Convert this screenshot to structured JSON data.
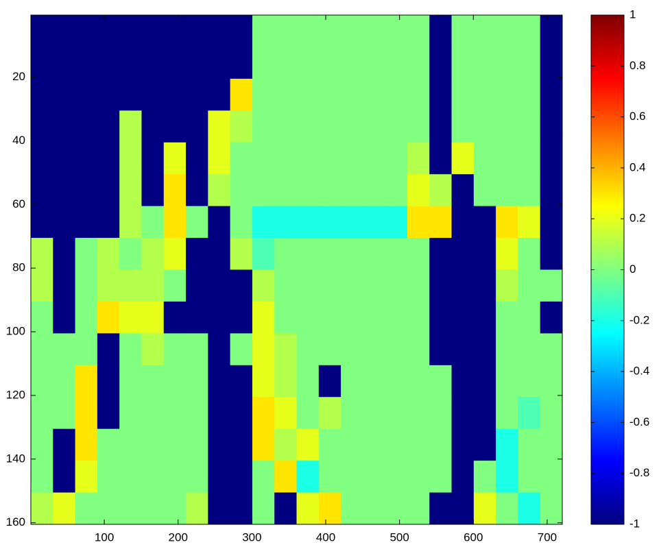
{
  "chart_data": {
    "type": "heatmap",
    "x": [
      15.5,
      45.5,
      75.5,
      105.5,
      135.5,
      165.5,
      195.5,
      225.5,
      255.5,
      285.5,
      315.5,
      345.5,
      375.5,
      405.5,
      435.5,
      465.5,
      495.5,
      525.5,
      555.5,
      585.5,
      615.5,
      645.5,
      675.5,
      705.5
    ],
    "y": [
      5.5,
      15.5,
      25.5,
      35.5,
      45.5,
      55.5,
      65.5,
      75.5,
      85.5,
      95.5,
      105.5,
      115.5,
      125.5,
      135.5,
      145.5,
      155.5
    ],
    "z": [
      [
        -1,
        -1,
        -1,
        -1,
        -1,
        -1,
        -1,
        -1,
        -1,
        -1,
        0,
        0,
        0,
        0,
        0,
        0,
        0,
        0,
        -1,
        0,
        0,
        0,
        0,
        -1
      ],
      [
        -1,
        -1,
        -1,
        -1,
        -1,
        -1,
        -1,
        -1,
        -1,
        -1,
        0,
        0,
        0,
        0,
        0,
        0,
        0,
        0,
        -1,
        0,
        0,
        0,
        0,
        -1
      ],
      [
        -1,
        -1,
        -1,
        -1,
        -1,
        -1,
        -1,
        -1,
        -1,
        0.3,
        0,
        0,
        0,
        0,
        0,
        0,
        0,
        0,
        -1,
        0,
        0,
        0,
        0,
        -1
      ],
      [
        -1,
        -1,
        -1,
        -1,
        0.1,
        -1,
        -1,
        -1,
        0.2,
        0.1,
        0,
        0,
        0,
        0,
        0,
        0,
        0,
        0,
        -1,
        0,
        0,
        0,
        0,
        -1
      ],
      [
        -1,
        -1,
        -1,
        -1,
        0.1,
        -1,
        0.2,
        -1,
        0.2,
        0,
        0,
        0,
        0,
        0,
        0,
        0,
        0,
        0.1,
        -1,
        0.2,
        0,
        0,
        0,
        -1
      ],
      [
        -1,
        -1,
        -1,
        -1,
        0.1,
        -1,
        0.3,
        -1,
        0.1,
        0,
        0,
        0,
        0,
        0,
        0,
        0,
        0,
        0.2,
        0.1,
        -1,
        0,
        0,
        0,
        -1
      ],
      [
        -1,
        -1,
        -1,
        -1,
        0.1,
        0,
        0.3,
        0,
        -1,
        0,
        -0.2,
        -0.2,
        -0.2,
        -0.2,
        -0.2,
        -0.2,
        -0.2,
        0.3,
        0.3,
        -1,
        -1,
        0.3,
        0.2,
        -1
      ],
      [
        0.1,
        -1,
        0,
        0.1,
        0,
        0.1,
        0.2,
        -1,
        -1,
        0.1,
        -0.1,
        0,
        0,
        0,
        0,
        0,
        0,
        0,
        -1,
        -1,
        -1,
        0.2,
        0,
        -1
      ],
      [
        0.1,
        -1,
        0,
        0.1,
        0.1,
        0.1,
        0,
        -1,
        -1,
        -1,
        0.1,
        0,
        0,
        0,
        0,
        0,
        0,
        0,
        -1,
        -1,
        -1,
        0.1,
        0,
        0
      ],
      [
        0,
        -1,
        0,
        0.3,
        0.2,
        0.2,
        -1,
        -1,
        -1,
        -1,
        0.2,
        0,
        0,
        0,
        0,
        0,
        0,
        0,
        -1,
        -1,
        -1,
        0,
        0,
        -1
      ],
      [
        0,
        0,
        0,
        -1,
        0,
        0.1,
        0,
        0,
        -1,
        0,
        0.2,
        0.1,
        0,
        0,
        0,
        0,
        0,
        0,
        -1,
        -1,
        -1,
        0,
        0,
        0
      ],
      [
        0,
        0,
        0.3,
        -1,
        0,
        0,
        0,
        0,
        -1,
        -1,
        0.2,
        0.1,
        0,
        -1,
        0,
        0,
        0,
        0,
        0,
        -1,
        -1,
        0,
        0,
        0
      ],
      [
        0,
        0,
        0.3,
        -1,
        0,
        0,
        0,
        0,
        -1,
        -1,
        0.3,
        0.2,
        0,
        0.1,
        0,
        0,
        0,
        0,
        0,
        -1,
        -1,
        0,
        -0.1,
        0
      ],
      [
        0,
        -1,
        0.3,
        0,
        0,
        0,
        0,
        0,
        -1,
        -1,
        0.3,
        0.1,
        0.2,
        0,
        0,
        0,
        0,
        0,
        0,
        -1,
        -1,
        -0.2,
        0,
        0
      ],
      [
        0,
        -1,
        0.2,
        0,
        0,
        0,
        0,
        0,
        -1,
        -1,
        0,
        0.3,
        -0.2,
        0,
        0,
        0,
        0,
        0,
        0,
        -1,
        0,
        -0.2,
        0,
        0
      ],
      [
        0.1,
        0.2,
        0,
        0,
        0,
        0,
        0,
        0.1,
        -1,
        -1,
        0,
        -1,
        0.2,
        0.3,
        0,
        0,
        0,
        0,
        -1,
        -1,
        0.2,
        0,
        -0.2,
        0
      ]
    ],
    "xlim": [
      0.5,
      720.5
    ],
    "xticks": [
      100,
      200,
      300,
      400,
      500,
      600,
      700
    ],
    "ylim": [
      0.5,
      160.5
    ],
    "yticks": [
      20,
      40,
      60,
      80,
      100,
      120,
      140,
      160
    ],
    "y_reversed": true,
    "colormap": "jet",
    "clim": [
      -1,
      1
    ],
    "cticks": [
      -1,
      -0.8,
      -0.6,
      -0.4,
      -0.2,
      0,
      0.2,
      0.4,
      0.6,
      0.8,
      1
    ]
  }
}
